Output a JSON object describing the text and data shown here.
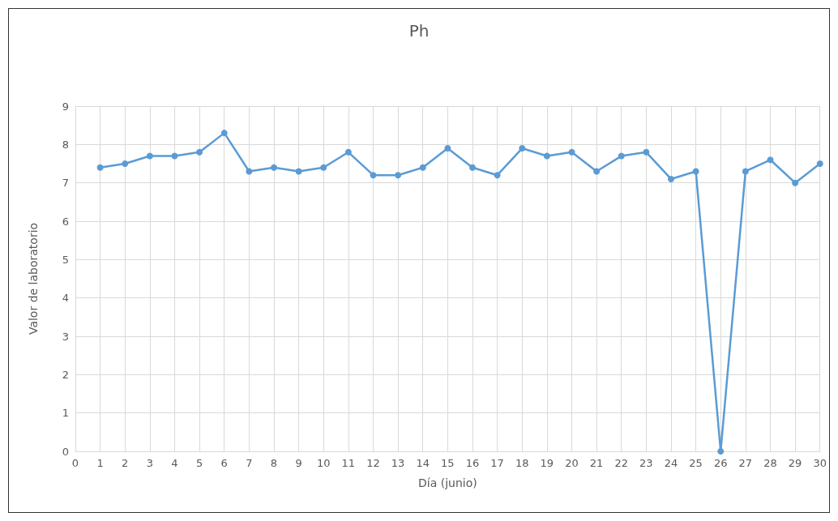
{
  "chart_data": {
    "type": "line",
    "title": "Ph",
    "xlabel": "Día (junio)",
    "ylabel": "Valor de laboratorio",
    "x": [
      1,
      2,
      3,
      4,
      5,
      6,
      7,
      8,
      9,
      10,
      11,
      12,
      13,
      14,
      15,
      16,
      17,
      18,
      19,
      20,
      21,
      22,
      23,
      24,
      25,
      26,
      27,
      28,
      29,
      30
    ],
    "series": [
      {
        "color": "#5b9bd5",
        "values": [
          7.4,
          7.5,
          7.7,
          7.7,
          7.8,
          8.3,
          7.3,
          7.4,
          7.3,
          7.4,
          7.8,
          7.2,
          7.2,
          7.4,
          7.9,
          7.4,
          7.2,
          7.9,
          7.7,
          7.8,
          7.3,
          7.7,
          7.8,
          7.1,
          7.3,
          0,
          7.3,
          7.6,
          7.0,
          7.5
        ]
      }
    ],
    "xlim": [
      0,
      30
    ],
    "xticks": [
      0,
      1,
      2,
      3,
      4,
      5,
      6,
      7,
      8,
      9,
      10,
      11,
      12,
      13,
      14,
      15,
      16,
      17,
      18,
      19,
      20,
      21,
      22,
      23,
      24,
      25,
      26,
      27,
      28,
      29,
      30
    ],
    "ylim": [
      0,
      9
    ],
    "yticks": [
      0,
      1,
      2,
      3,
      4,
      5,
      6,
      7,
      8,
      9
    ],
    "grid": true,
    "marker": "circle",
    "line_style": "solid"
  }
}
